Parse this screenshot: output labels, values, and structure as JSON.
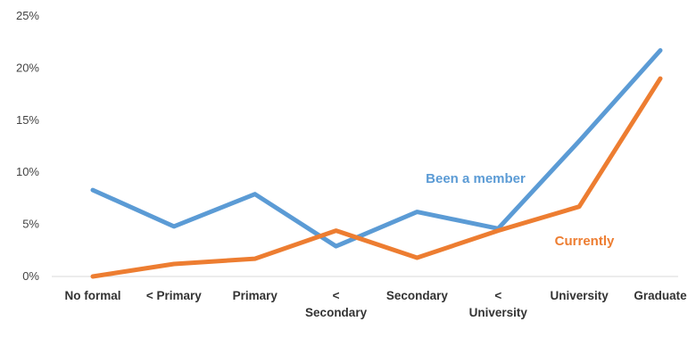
{
  "chart_data": {
    "type": "line",
    "categories": [
      "No formal",
      "< Primary",
      "Primary",
      "< Secondary",
      "Secondary",
      "< University",
      "University",
      "Graduate"
    ],
    "category_lines": [
      [
        "No formal"
      ],
      [
        "< Primary"
      ],
      [
        "Primary"
      ],
      [
        "<",
        "Secondary"
      ],
      [
        "Secondary"
      ],
      [
        "<",
        "University"
      ],
      [
        "University"
      ],
      [
        "Graduate"
      ]
    ],
    "series": [
      {
        "name": "Been a member",
        "color": "#5b9bd5",
        "values": [
          8.3,
          4.8,
          7.9,
          2.9,
          6.2,
          4.6,
          13.0,
          21.7
        ]
      },
      {
        "name": "Currently",
        "color": "#ed7d31",
        "values": [
          0.0,
          1.2,
          1.7,
          4.4,
          1.8,
          4.4,
          6.7,
          19.0
        ]
      }
    ],
    "y_ticks": [
      "0%",
      "5%",
      "10%",
      "15%",
      "20%",
      "25%"
    ],
    "ylim": [
      0,
      25
    ],
    "grid": false,
    "title": "",
    "xlabel": "",
    "ylabel": ""
  }
}
